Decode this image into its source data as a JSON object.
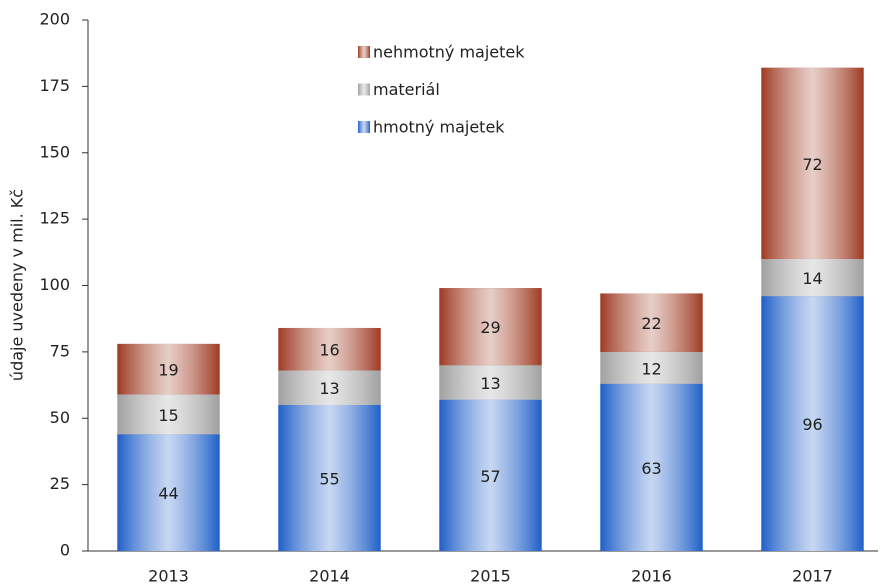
{
  "chart_data": {
    "type": "stacked_bar",
    "y_label": "údaje uvedeny v mil. Kč",
    "categories": [
      "2013",
      "2014",
      "2015",
      "2016",
      "2017"
    ],
    "series": [
      {
        "name": "hmotný majetek",
        "color": "#1f5fc8",
        "values": [
          44,
          55,
          57,
          63,
          96
        ]
      },
      {
        "name": "materiál",
        "color": "#a0a0a0",
        "values": [
          15,
          13,
          13,
          12,
          14
        ]
      },
      {
        "name": "nehmotný majetek",
        "color": "#9e3a22",
        "values": [
          19,
          16,
          29,
          22,
          72
        ]
      }
    ],
    "ylim": [
      0,
      200
    ],
    "yticks": [
      0,
      25,
      50,
      75,
      100,
      125,
      150,
      175,
      200
    ],
    "legend": "upper center",
    "grid": false
  }
}
